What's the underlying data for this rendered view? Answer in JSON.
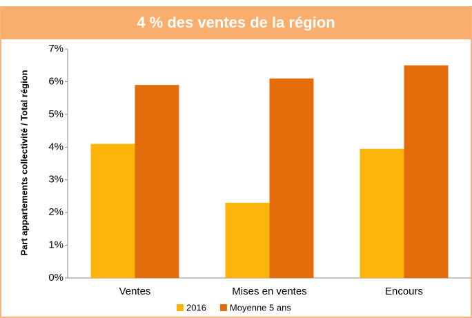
{
  "chart_data": {
    "type": "bar",
    "title": "4 % des ventes de la région",
    "y_label": "Part appartements collectivité / Total région",
    "categories": [
      "Ventes",
      "Mises  en ventes",
      "Encours"
    ],
    "series": [
      {
        "name": "2016",
        "color": "#fbb40a",
        "values": [
          4.1,
          2.3,
          3.95
        ]
      },
      {
        "name": "Moyenne 5 ans",
        "color": "#e46c0a",
        "values": [
          5.9,
          6.1,
          6.5
        ]
      }
    ],
    "ylim": [
      0,
      7
    ],
    "yticks": [
      {
        "value": 0,
        "label": "0%"
      },
      {
        "value": 1,
        "label": "1%"
      },
      {
        "value": 2,
        "label": "2%"
      },
      {
        "value": 3,
        "label": "3%"
      },
      {
        "value": 4,
        "label": "4%"
      },
      {
        "value": 5,
        "label": "5%"
      },
      {
        "value": 6,
        "label": "6%"
      },
      {
        "value": 7,
        "label": "7%"
      }
    ],
    "legend": "bottom"
  }
}
